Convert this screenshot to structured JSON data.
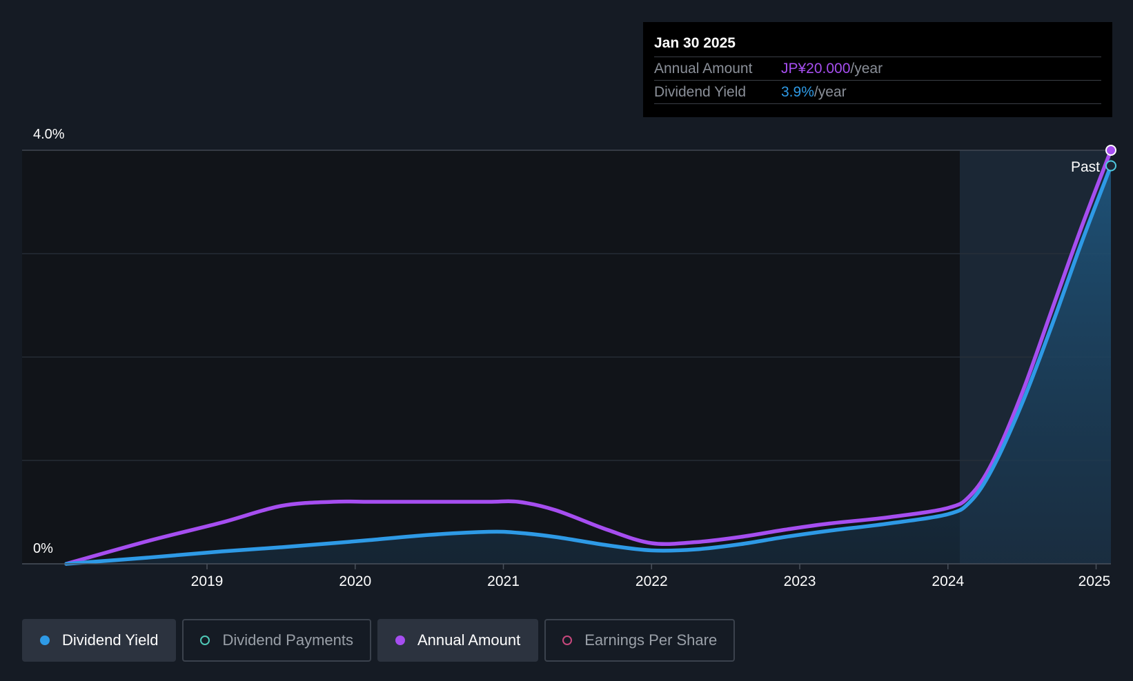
{
  "tooltip": {
    "date": "Jan 30 2025",
    "rows": [
      {
        "label": "Annual Amount",
        "value": "JP¥20.000",
        "unit": "/year"
      },
      {
        "label": "Dividend Yield",
        "value": "3.9%",
        "unit": "/year"
      }
    ]
  },
  "legend": [
    {
      "label": "Dividend Yield",
      "color": "#2e9ae6",
      "active": true
    },
    {
      "label": "Dividend Payments",
      "color": "#4fc9b8",
      "active": false
    },
    {
      "label": "Annual Amount",
      "color": "#a64ef0",
      "active": true
    },
    {
      "label": "Earnings Per Share",
      "color": "#c8487d",
      "active": false
    }
  ],
  "chart_data": {
    "type": "line",
    "title": "",
    "xlabel": "",
    "ylabel": "",
    "y_tick_labels": [
      "4.0%",
      "0%"
    ],
    "ylim": [
      0,
      4.0
    ],
    "xlim": [
      2018.05,
      2025.1
    ],
    "x_ticks": [
      "2019",
      "2020",
      "2021",
      "2022",
      "2023",
      "2024",
      "2025"
    ],
    "past_label": "Past",
    "past_start": 2024.08,
    "grid": true,
    "series": [
      {
        "name": "Annual Amount",
        "color": "#a64ef0",
        "x": [
          2018.05,
          2018.6,
          2019.1,
          2019.5,
          2019.85,
          2020.1,
          2020.5,
          2020.9,
          2021.1,
          2021.35,
          2021.7,
          2022.0,
          2022.3,
          2022.6,
          2022.9,
          2023.2,
          2023.6,
          2024.0,
          2024.15,
          2024.3,
          2024.5,
          2024.7,
          2024.9,
          2025.1
        ],
        "values": [
          0.0,
          0.22,
          0.4,
          0.56,
          0.6,
          0.6,
          0.6,
          0.6,
          0.6,
          0.52,
          0.33,
          0.2,
          0.21,
          0.26,
          0.33,
          0.39,
          0.45,
          0.54,
          0.66,
          0.98,
          1.65,
          2.45,
          3.25,
          4.0
        ],
        "display": "JP¥20.000"
      },
      {
        "name": "Dividend Yield",
        "color": "#2e9ae6",
        "x": [
          2018.05,
          2018.6,
          2019.1,
          2019.5,
          2019.85,
          2020.1,
          2020.5,
          2020.9,
          2021.1,
          2021.35,
          2021.7,
          2022.0,
          2022.3,
          2022.6,
          2022.9,
          2023.2,
          2023.6,
          2024.0,
          2024.15,
          2024.3,
          2024.5,
          2024.7,
          2024.9,
          2025.1
        ],
        "values": [
          0.0,
          0.06,
          0.12,
          0.16,
          0.2,
          0.23,
          0.28,
          0.31,
          0.3,
          0.26,
          0.18,
          0.13,
          0.14,
          0.19,
          0.26,
          0.32,
          0.39,
          0.48,
          0.6,
          0.92,
          1.55,
          2.3,
          3.1,
          3.85
        ],
        "display": "3.9%"
      }
    ]
  }
}
